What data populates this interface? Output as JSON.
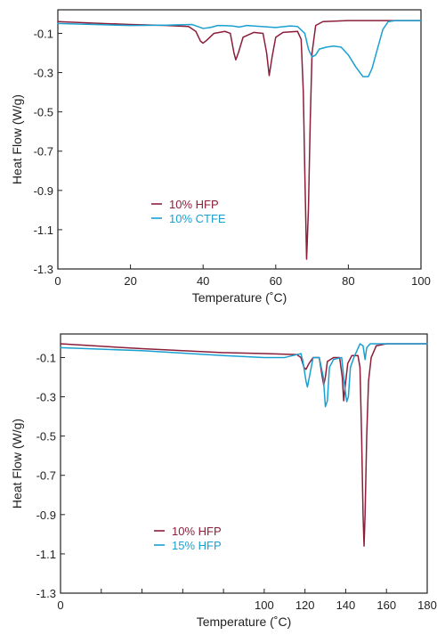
{
  "chart_data": [
    {
      "type": "line",
      "xlabel": "Temperature (˚C)",
      "ylabel": "Heat Flow (W/g)",
      "xlim": [
        0,
        100
      ],
      "ylim": [
        -1.3,
        0.02
      ],
      "xticks": [
        0,
        20,
        40,
        60,
        80,
        100
      ],
      "yticks": [
        -0.1,
        -0.3,
        -0.5,
        -0.7,
        -0.9,
        -1.1,
        -1.3
      ],
      "x_tick_labels": [
        "0",
        "20",
        "40",
        "60",
        "80",
        "100"
      ],
      "y_tick_labels": [
        "-0.1",
        "-0.3",
        "-0.5",
        "-0.7",
        "-0.9",
        "-1.1",
        "-1.3"
      ],
      "grid": false,
      "legend_position": "lower-left",
      "series": [
        {
          "name": "10% HFP",
          "color": "#8B1E3A",
          "points": [
            [
              0,
              -0.04
            ],
            [
              10,
              -0.048
            ],
            [
              20,
              -0.055
            ],
            [
              30,
              -0.06
            ],
            [
              36,
              -0.065
            ],
            [
              38,
              -0.09
            ],
            [
              39.3,
              -0.14
            ],
            [
              40,
              -0.15
            ],
            [
              41,
              -0.135
            ],
            [
              43,
              -0.1
            ],
            [
              46,
              -0.09
            ],
            [
              47.5,
              -0.1
            ],
            [
              48.5,
              -0.2
            ],
            [
              49,
              -0.235
            ],
            [
              49.7,
              -0.2
            ],
            [
              51,
              -0.12
            ],
            [
              54,
              -0.095
            ],
            [
              56.5,
              -0.1
            ],
            [
              57.5,
              -0.2
            ],
            [
              58.2,
              -0.315
            ],
            [
              59,
              -0.22
            ],
            [
              60,
              -0.12
            ],
            [
              62,
              -0.095
            ],
            [
              66,
              -0.09
            ],
            [
              67,
              -0.13
            ],
            [
              67.6,
              -0.4
            ],
            [
              68,
              -0.8
            ],
            [
              68.5,
              -1.25
            ],
            [
              69,
              -1.0
            ],
            [
              69.5,
              -0.55
            ],
            [
              70,
              -0.2
            ],
            [
              71,
              -0.06
            ],
            [
              73,
              -0.04
            ],
            [
              80,
              -0.035
            ],
            [
              90,
              -0.035
            ],
            [
              100,
              -0.035
            ]
          ]
        },
        {
          "name": "10% CTFE",
          "color": "#1AA0D0",
          "points": [
            [
              0,
              -0.05
            ],
            [
              10,
              -0.055
            ],
            [
              20,
              -0.06
            ],
            [
              30,
              -0.058
            ],
            [
              37,
              -0.055
            ],
            [
              40,
              -0.075
            ],
            [
              42,
              -0.07
            ],
            [
              44,
              -0.06
            ],
            [
              48,
              -0.062
            ],
            [
              50,
              -0.068
            ],
            [
              52,
              -0.06
            ],
            [
              56,
              -0.065
            ],
            [
              60,
              -0.07
            ],
            [
              64,
              -0.062
            ],
            [
              66,
              -0.065
            ],
            [
              68,
              -0.1
            ],
            [
              69,
              -0.18
            ],
            [
              70,
              -0.22
            ],
            [
              71,
              -0.21
            ],
            [
              72,
              -0.18
            ],
            [
              74,
              -0.17
            ],
            [
              76,
              -0.165
            ],
            [
              78,
              -0.17
            ],
            [
              80,
              -0.21
            ],
            [
              82,
              -0.27
            ],
            [
              84,
              -0.32
            ],
            [
              85.5,
              -0.32
            ],
            [
              86.5,
              -0.28
            ],
            [
              88,
              -0.18
            ],
            [
              89.5,
              -0.08
            ],
            [
              91,
              -0.04
            ],
            [
              93,
              -0.035
            ],
            [
              100,
              -0.035
            ]
          ]
        }
      ]
    },
    {
      "type": "line",
      "xlabel": "Temperature (˚C)",
      "ylabel": "Heat Flow (W/g)",
      "xlim": [
        0,
        180
      ],
      "ylim": [
        -1.3,
        0.02
      ],
      "xticks": [
        0,
        20,
        40,
        60,
        80,
        100,
        120,
        140,
        160,
        180
      ],
      "yticks": [
        -0.1,
        -0.3,
        -0.5,
        -0.7,
        -0.9,
        -1.1,
        -1.3
      ],
      "x_tick_labels": [
        "0",
        "",
        "",
        "",
        "",
        "100",
        "120",
        "140",
        "160",
        "180"
      ],
      "y_tick_labels": [
        "-0.1",
        "-0.3",
        "-0.5",
        "-0.7",
        "-0.9",
        "-1.1",
        "-1.3"
      ],
      "grid": false,
      "legend_position": "lower-left",
      "series": [
        {
          "name": "10% HFP",
          "color": "#8B1E3A",
          "points": [
            [
              0,
              -0.03
            ],
            [
              40,
              -0.055
            ],
            [
              80,
              -0.075
            ],
            [
              100,
              -0.08
            ],
            [
              116,
              -0.085
            ],
            [
              118,
              -0.1
            ],
            [
              119.5,
              -0.15
            ],
            [
              120.5,
              -0.16
            ],
            [
              122,
              -0.13
            ],
            [
              124,
              -0.1
            ],
            [
              127,
              -0.1
            ],
            [
              128.5,
              -0.2
            ],
            [
              129.2,
              -0.24
            ],
            [
              130,
              -0.2
            ],
            [
              131,
              -0.12
            ],
            [
              134,
              -0.1
            ],
            [
              137,
              -0.1
            ],
            [
              138.3,
              -0.2
            ],
            [
              139,
              -0.32
            ],
            [
              139.8,
              -0.24
            ],
            [
              141,
              -0.13
            ],
            [
              143,
              -0.09
            ],
            [
              146,
              -0.09
            ],
            [
              147,
              -0.15
            ],
            [
              147.8,
              -0.5
            ],
            [
              148.5,
              -0.9
            ],
            [
              149,
              -1.06
            ],
            [
              149.5,
              -0.9
            ],
            [
              150.3,
              -0.5
            ],
            [
              151.2,
              -0.22
            ],
            [
              152.5,
              -0.1
            ],
            [
              155,
              -0.04
            ],
            [
              160,
              -0.03
            ],
            [
              180,
              -0.03
            ]
          ]
        },
        {
          "name": "15% HFP",
          "color": "#1AA0D0",
          "points": [
            [
              0,
              -0.05
            ],
            [
              40,
              -0.065
            ],
            [
              80,
              -0.09
            ],
            [
              100,
              -0.1
            ],
            [
              110,
              -0.1
            ],
            [
              118,
              -0.08
            ],
            [
              119,
              -0.12
            ],
            [
              120.5,
              -0.22
            ],
            [
              121.2,
              -0.25
            ],
            [
              122.5,
              -0.18
            ],
            [
              124,
              -0.1
            ],
            [
              127,
              -0.1
            ],
            [
              129,
              -0.2
            ],
            [
              130,
              -0.35
            ],
            [
              131,
              -0.32
            ],
            [
              132,
              -0.15
            ],
            [
              134,
              -0.11
            ],
            [
              138,
              -0.1
            ],
            [
              139.5,
              -0.25
            ],
            [
              140.5,
              -0.325
            ],
            [
              141.3,
              -0.3
            ],
            [
              142.3,
              -0.15
            ],
            [
              144,
              -0.1
            ],
            [
              147,
              -0.03
            ],
            [
              148.5,
              -0.04
            ],
            [
              149.5,
              -0.11
            ],
            [
              150.3,
              -0.05
            ],
            [
              152,
              -0.03
            ],
            [
              180,
              -0.03
            ]
          ]
        }
      ]
    }
  ]
}
